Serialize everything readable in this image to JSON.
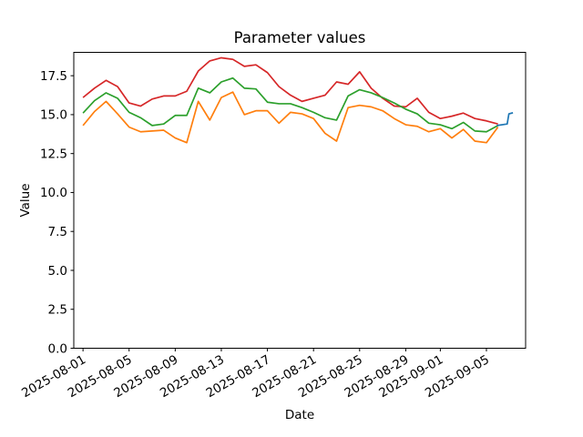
{
  "figure": {
    "title": "Parameter values",
    "xlabel": "Date",
    "ylabel": "Value",
    "background": "#ffffff",
    "axes_color": "#000000"
  },
  "chart_data": {
    "type": "line",
    "title": "Parameter values",
    "xlabel": "Date",
    "ylabel": "Value",
    "grid": false,
    "legend": null,
    "start_date": "2025-08-01",
    "x_unit": "days since 2025-08-01",
    "xlim": [
      -0.8,
      38.4
    ],
    "ylim": [
      0,
      19.0
    ],
    "y_ticks": [
      0,
      2.5,
      5,
      7.5,
      10,
      12.5,
      15,
      17.5
    ],
    "y_tick_labels": [
      "0.0",
      "2.5",
      "5.0",
      "7.5",
      "10.0",
      "12.5",
      "15.0",
      "17.5"
    ],
    "x_ticks": [
      {
        "day": 0,
        "label": "2025-08-01"
      },
      {
        "day": 4,
        "label": "2025-08-05"
      },
      {
        "day": 8,
        "label": "2025-08-09"
      },
      {
        "day": 12,
        "label": "2025-08-13"
      },
      {
        "day": 16,
        "label": "2025-08-17"
      },
      {
        "day": 20,
        "label": "2025-08-21"
      },
      {
        "day": 24,
        "label": "2025-08-25"
      },
      {
        "day": 28,
        "label": "2025-08-29"
      },
      {
        "day": 31,
        "label": "2025-09-01"
      },
      {
        "day": 35,
        "label": "2025-09-05"
      }
    ],
    "series": [
      {
        "name": "series-red",
        "color": "#d62728",
        "days": [
          0,
          1,
          2,
          3,
          4,
          5,
          6,
          7,
          8,
          9,
          10,
          11,
          12,
          13,
          14,
          15,
          16,
          17,
          18,
          19,
          20,
          21,
          22,
          23,
          24,
          25,
          26,
          27,
          28,
          29,
          30,
          31,
          32,
          33,
          34,
          35,
          36
        ],
        "values": [
          16.1,
          16.7,
          17.2,
          16.8,
          15.75,
          15.55,
          16.0,
          16.2,
          16.2,
          16.5,
          17.8,
          18.45,
          18.65,
          18.55,
          18.1,
          18.2,
          17.7,
          16.8,
          16.25,
          15.85,
          16.05,
          16.25,
          17.1,
          16.95,
          17.75,
          16.7,
          16.05,
          15.55,
          15.5,
          16.05,
          15.15,
          14.75,
          14.9,
          15.1,
          14.75,
          14.6,
          14.4
        ]
      },
      {
        "name": "series-green",
        "color": "#2ca02c",
        "days": [
          0,
          1,
          2,
          3,
          4,
          5,
          6,
          7,
          8,
          9,
          10,
          11,
          12,
          13,
          14,
          15,
          16,
          17,
          18,
          19,
          20,
          21,
          22,
          23,
          24,
          25,
          26,
          27,
          28,
          29,
          30,
          31,
          32,
          33,
          34,
          35,
          36
        ],
        "values": [
          15.1,
          15.9,
          16.4,
          16.05,
          15.15,
          14.8,
          14.3,
          14.4,
          14.95,
          14.95,
          16.7,
          16.4,
          17.1,
          17.35,
          16.7,
          16.65,
          15.8,
          15.7,
          15.7,
          15.45,
          15.15,
          14.8,
          14.65,
          16.2,
          16.6,
          16.4,
          16.1,
          15.75,
          15.35,
          15.05,
          14.45,
          14.35,
          14.1,
          14.5,
          13.95,
          13.9,
          14.3
        ]
      },
      {
        "name": "series-orange",
        "color": "#ff7f0e",
        "days": [
          0,
          1,
          2,
          3,
          4,
          5,
          6,
          7,
          8,
          9,
          10,
          11,
          12,
          13,
          14,
          15,
          16,
          17,
          18,
          19,
          20,
          21,
          22,
          23,
          24,
          25,
          26,
          27,
          28,
          29,
          30,
          31,
          32,
          33,
          34,
          35,
          36
        ],
        "values": [
          14.3,
          15.2,
          15.85,
          15.05,
          14.2,
          13.9,
          13.95,
          14.0,
          13.5,
          13.2,
          15.85,
          14.65,
          16.1,
          16.45,
          15.0,
          15.25,
          15.25,
          14.45,
          15.15,
          15.05,
          14.75,
          13.8,
          13.3,
          15.45,
          15.6,
          15.5,
          15.25,
          14.75,
          14.35,
          14.25,
          13.9,
          14.1,
          13.5,
          14.05,
          13.3,
          13.2,
          14.2
        ]
      },
      {
        "name": "series-blue",
        "color": "#1f77b4",
        "days": [
          35.9,
          36.8,
          36.95,
          37.3
        ],
        "values": [
          14.3,
          14.4,
          15.05,
          15.12
        ]
      }
    ]
  }
}
